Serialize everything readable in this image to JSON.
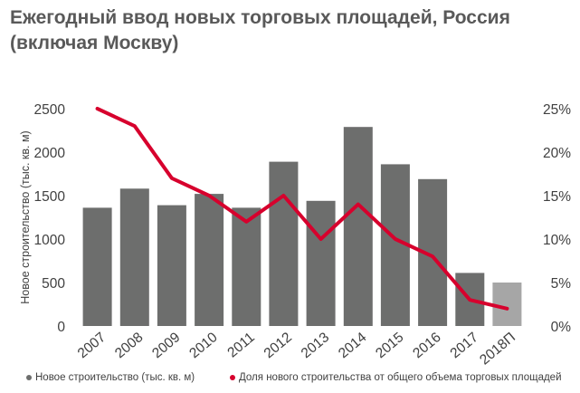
{
  "title": "Ежегодный ввод новых торговых площадей, Россия (включая Москву)",
  "colors": {
    "bar": "#6d6e6d",
    "bar_forecast": "#a6a6a6",
    "line": "#d7002d",
    "text": "#404040",
    "title": "#595959"
  },
  "legend": {
    "bars": "Новое строительство (тыс. кв. м)",
    "line": "Доля нового строительства от общего объема торговых площадей"
  },
  "chart_data": {
    "type": "bar",
    "title": "Ежегодный ввод новых торговых площадей, Россия (включая Москву)",
    "categories": [
      "2007",
      "2008",
      "2009",
      "2010",
      "2011",
      "2012",
      "2013",
      "2014",
      "2015",
      "2016",
      "2017",
      "2018П"
    ],
    "ylabel": "Новое строительство (тыс. кв. м)",
    "y_ticks": [
      "0",
      "500",
      "1000",
      "1500",
      "2000",
      "2500"
    ],
    "y2_ticks": [
      "0%",
      "5%",
      "10%",
      "15%",
      "20%",
      "25%"
    ],
    "ylim": [
      0,
      2500
    ],
    "y2lim": [
      0,
      25
    ],
    "grid": false,
    "legend_position": "bottom",
    "series": [
      {
        "name": "Новое строительство (тыс. кв. м)",
        "type": "bar",
        "axis": "left",
        "values": [
          1360,
          1580,
          1390,
          1520,
          1360,
          1890,
          1440,
          2290,
          1860,
          1690,
          610,
          500
        ]
      },
      {
        "name": "Доля нового строительства от общего объема торговых площадей",
        "type": "line",
        "axis": "right",
        "unit": "%",
        "values": [
          25,
          23,
          17,
          15,
          12,
          15,
          10,
          14,
          10,
          8,
          3,
          2
        ]
      }
    ]
  }
}
